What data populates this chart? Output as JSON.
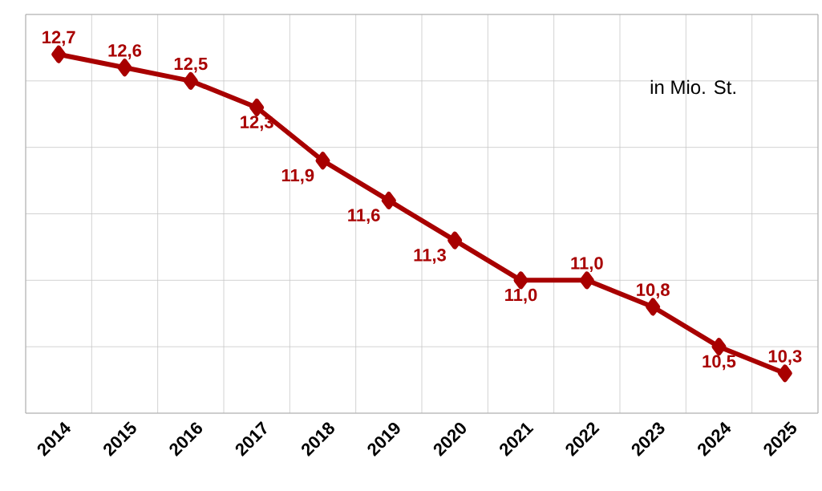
{
  "chart_data": {
    "type": "line",
    "categories": [
      "2014",
      "2015",
      "2016",
      "2017",
      "2018",
      "2019",
      "2020",
      "2021",
      "2022",
      "2023",
      "2024",
      "2025"
    ],
    "series": [
      {
        "color": "#a80000",
        "values": [
          12.7,
          12.6,
          12.5,
          12.3,
          11.9,
          11.6,
          11.3,
          11.0,
          11.0,
          10.8,
          10.5,
          10.3
        ],
        "value_labels": [
          "12,7",
          "12,6",
          "12,5",
          "12,3",
          "11,9",
          "11,6",
          "11,3",
          "11,0",
          "11,0",
          "10,8",
          "10,5",
          "10,3"
        ]
      }
    ],
    "ylim": [
      10,
      13
    ],
    "yticks": [
      {
        "value": 10,
        "label": null
      },
      {
        "value": 10.5,
        "label": null
      },
      {
        "value": 11,
        "label": null
      },
      {
        "value": 11.5,
        "label": null
      },
      {
        "value": 12,
        "label": null
      },
      {
        "value": 12.5,
        "label": null
      },
      {
        "value": 13,
        "label": null
      }
    ],
    "tick_labels": "x",
    "grid": true,
    "marker": "diamond",
    "line_style": "solid",
    "annotations": [
      "in Mio. St."
    ]
  }
}
